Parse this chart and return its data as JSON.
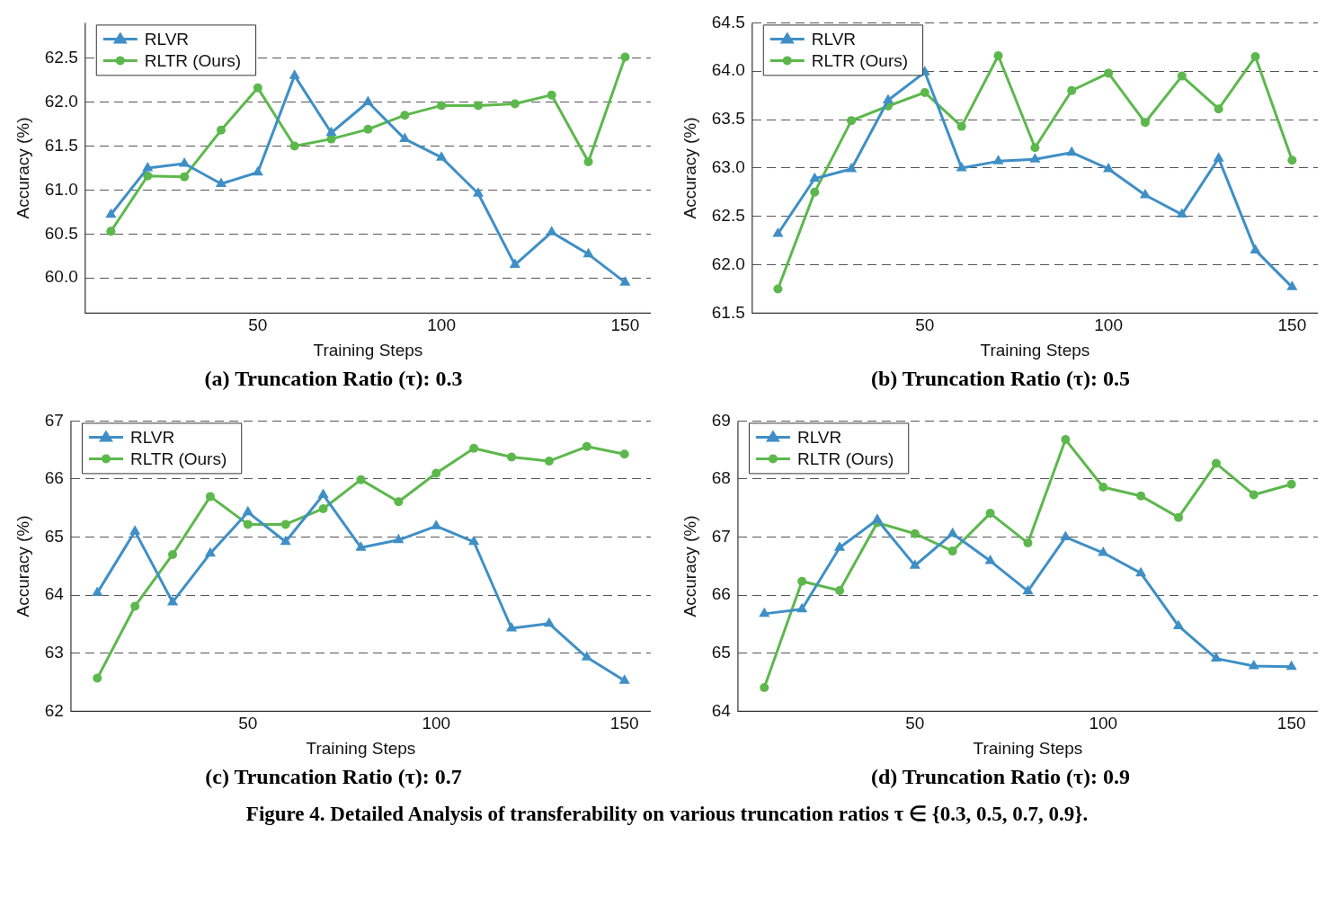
{
  "chart_data": [
    {
      "type": "line",
      "title": "(a) Truncation Ratio (τ): 0.3",
      "xlabel": "Training Steps",
      "ylabel": "Accuracy (%)",
      "x": [
        10,
        20,
        30,
        40,
        50,
        60,
        70,
        80,
        90,
        100,
        110,
        120,
        130,
        140,
        150
      ],
      "xlim": [
        3,
        157
      ],
      "xticks": [
        50,
        100,
        150
      ],
      "ylim": [
        59.6,
        62.9
      ],
      "yticks": [
        {
          "value": 60,
          "label": "60.0"
        },
        60.5,
        {
          "value": 61,
          "label": "61.0"
        },
        61.5,
        {
          "value": 62,
          "label": "62.0"
        },
        62.5
      ],
      "grid": "y",
      "legend": "top left",
      "line_style": "solid",
      "series": [
        {
          "name": "RLVR",
          "color": "#3f8fc6",
          "marker": "triangle",
          "values": [
            60.72,
            61.25,
            61.3,
            61.07,
            61.2,
            62.3,
            61.65,
            62.0,
            61.58,
            61.37,
            60.96,
            60.15,
            60.52,
            60.27,
            59.95
          ]
        },
        {
          "name": "RLTR (Ours)",
          "color": "#5cb84c",
          "marker": "circle",
          "values": [
            60.53,
            61.16,
            61.15,
            61.68,
            62.16,
            61.5,
            61.58,
            61.69,
            61.85,
            61.96,
            61.96,
            61.98,
            62.08,
            61.32,
            62.51
          ]
        }
      ]
    },
    {
      "type": "line",
      "title": "(b) Truncation Ratio (τ): 0.5",
      "xlabel": "Training Steps",
      "ylabel": "Accuracy (%)",
      "x": [
        10,
        20,
        30,
        40,
        50,
        60,
        70,
        80,
        90,
        100,
        110,
        120,
        130,
        140,
        150
      ],
      "xlim": [
        3,
        157
      ],
      "xticks": [
        50,
        100,
        150
      ],
      "ylim": [
        61.5,
        64.5
      ],
      "yticks": [
        61.5,
        {
          "value": 62,
          "label": "62.0"
        },
        62.5,
        {
          "value": 63,
          "label": "63.0"
        },
        63.5,
        {
          "value": 64,
          "label": "64.0"
        },
        64.5
      ],
      "grid": "y",
      "legend": "top left",
      "line_style": "solid",
      "series": [
        {
          "name": "RLVR",
          "color": "#3f8fc6",
          "marker": "triangle",
          "values": [
            62.32,
            62.89,
            62.99,
            63.7,
            63.99,
            63.0,
            63.07,
            63.09,
            63.16,
            62.99,
            62.72,
            62.52,
            63.1,
            62.15,
            61.77
          ]
        },
        {
          "name": "RLTR (Ours)",
          "color": "#5cb84c",
          "marker": "circle",
          "values": [
            61.75,
            62.75,
            63.49,
            63.64,
            63.78,
            63.43,
            64.16,
            63.21,
            63.8,
            63.98,
            63.47,
            63.95,
            63.61,
            64.15,
            63.08
          ]
        }
      ]
    },
    {
      "type": "line",
      "title": "(c) Truncation Ratio (τ): 0.7",
      "xlabel": "Training Steps",
      "ylabel": "Accuracy (%)",
      "x": [
        10,
        20,
        30,
        40,
        50,
        60,
        70,
        80,
        90,
        100,
        110,
        120,
        130,
        140,
        150
      ],
      "xlim": [
        3,
        157
      ],
      "xticks": [
        50,
        100,
        150
      ],
      "ylim": [
        62,
        67
      ],
      "yticks": [
        62,
        63,
        64,
        65,
        66,
        67
      ],
      "grid": "y",
      "legend": "top left",
      "line_style": "solid",
      "series": [
        {
          "name": "RLVR",
          "color": "#3f8fc6",
          "marker": "triangle",
          "values": [
            64.04,
            65.1,
            63.88,
            64.72,
            65.43,
            64.92,
            65.73,
            64.82,
            64.95,
            65.19,
            64.92,
            63.43,
            63.51,
            62.93,
            62.53
          ]
        },
        {
          "name": "RLTR (Ours)",
          "color": "#5cb84c",
          "marker": "circle",
          "values": [
            62.57,
            63.81,
            64.7,
            65.7,
            65.22,
            65.22,
            65.49,
            65.99,
            65.61,
            66.1,
            66.53,
            66.38,
            66.31,
            66.56,
            66.43
          ]
        }
      ]
    },
    {
      "type": "line",
      "title": "(d) Truncation Ratio (τ): 0.9",
      "xlabel": "Training Steps",
      "ylabel": "Accuracy (%)",
      "x": [
        10,
        20,
        30,
        40,
        50,
        60,
        70,
        80,
        90,
        100,
        110,
        120,
        130,
        140,
        150
      ],
      "xlim": [
        3,
        157
      ],
      "xticks": [
        50,
        100,
        150
      ],
      "ylim": [
        64,
        69
      ],
      "yticks": [
        64,
        65,
        66,
        67,
        68,
        69
      ],
      "grid": "y",
      "legend": "top left",
      "line_style": "solid",
      "annotations": [
        "Figure 4. Detailed Analysis of transferability on various truncation ratios τ ∈ {0.3, 0.5, 0.7, 0.9}."
      ],
      "series": [
        {
          "name": "RLVR",
          "color": "#3f8fc6",
          "marker": "triangle",
          "values": [
            65.68,
            65.76,
            66.82,
            67.3,
            66.51,
            67.06,
            66.59,
            66.07,
            67.0,
            66.73,
            66.38,
            65.47,
            64.91,
            64.78,
            64.77
          ]
        },
        {
          "name": "RLTR (Ours)",
          "color": "#5cb84c",
          "marker": "circle",
          "values": [
            64.41,
            66.24,
            66.08,
            67.25,
            67.06,
            66.76,
            67.41,
            66.9,
            68.68,
            67.86,
            67.71,
            67.34,
            68.27,
            67.73,
            67.91
          ]
        }
      ]
    }
  ]
}
